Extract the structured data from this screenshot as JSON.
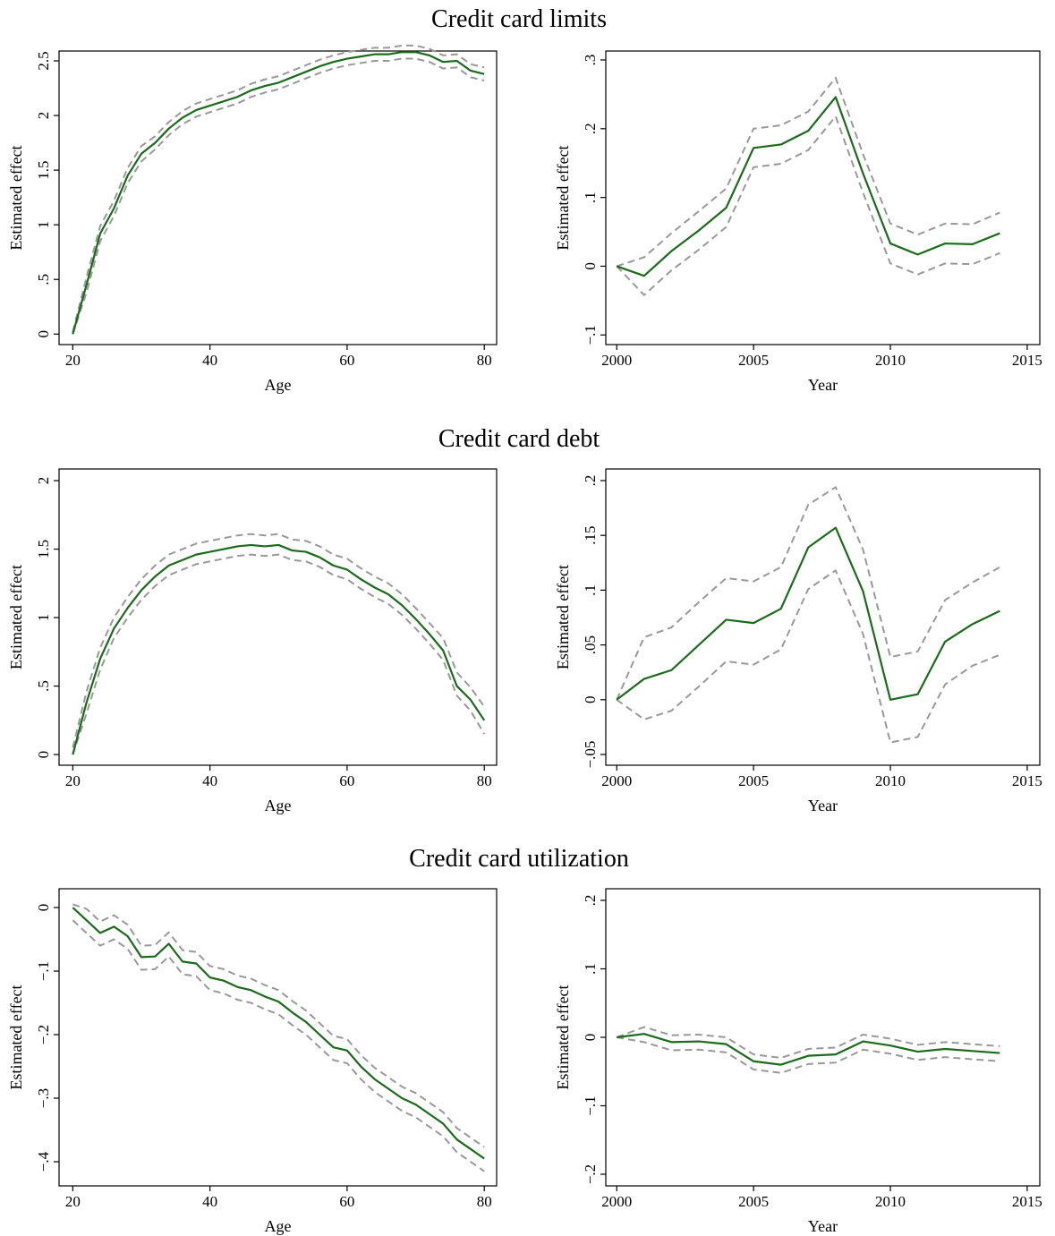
{
  "chart_data": [
    {
      "type": "line",
      "title": "Credit card limits",
      "xlabel": "Age",
      "ylabel": "Estimated effect",
      "x": [
        20,
        22,
        24,
        26,
        28,
        30,
        32,
        34,
        36,
        38,
        40,
        42,
        44,
        46,
        48,
        50,
        52,
        54,
        56,
        58,
        60,
        62,
        64,
        66,
        68,
        70,
        72,
        74,
        76,
        78,
        80
      ],
      "series": [
        {
          "color": "#999999",
          "dashed": true,
          "values": [
            0.02,
            0.52,
            0.99,
            1.22,
            1.52,
            1.72,
            1.81,
            1.94,
            2.04,
            2.11,
            2.15,
            2.19,
            2.23,
            2.29,
            2.33,
            2.36,
            2.41,
            2.46,
            2.51,
            2.55,
            2.58,
            2.6,
            2.62,
            2.62,
            2.64,
            2.64,
            2.61,
            2.55,
            2.56,
            2.47,
            2.44
          ]
        },
        {
          "color": "#999999",
          "dashed": true,
          "values": [
            0,
            0.38,
            0.85,
            1.08,
            1.38,
            1.58,
            1.69,
            1.82,
            1.92,
            1.99,
            2.03,
            2.07,
            2.11,
            2.17,
            2.21,
            2.24,
            2.29,
            2.34,
            2.39,
            2.43,
            2.46,
            2.48,
            2.5,
            2.5,
            2.52,
            2.52,
            2.49,
            2.43,
            2.44,
            2.35,
            2.32
          ]
        },
        {
          "color": "#1a6b1a",
          "dashed": false,
          "values": [
            0,
            0.45,
            0.92,
            1.15,
            1.45,
            1.65,
            1.75,
            1.88,
            1.98,
            2.05,
            2.09,
            2.13,
            2.17,
            2.23,
            2.27,
            2.3,
            2.35,
            2.4,
            2.45,
            2.49,
            2.52,
            2.54,
            2.56,
            2.56,
            2.58,
            2.58,
            2.55,
            2.49,
            2.5,
            2.41,
            2.38
          ]
        }
      ],
      "xlim": [
        18.0,
        81.8
      ],
      "ylim": [
        -0.096,
        2.59
      ],
      "xticks": [
        20,
        40,
        60,
        80
      ],
      "yticks": [
        0,
        {
          "value": 0.5,
          "label": ".5"
        },
        1,
        1.5,
        2,
        2.5
      ]
    },
    {
      "type": "line",
      "xlabel": "Year",
      "ylabel": "Estimated effect",
      "x": [
        2000,
        2001,
        2002,
        2003,
        2004,
        2005,
        2006,
        2007,
        2008,
        2009,
        2010,
        2011,
        2012,
        2013,
        2014
      ],
      "series": [
        {
          "color": "#999999",
          "dashed": true,
          "values": [
            0,
            0.013,
            0.048,
            0.08,
            0.113,
            0.2,
            0.205,
            0.225,
            0.274,
            0.163,
            0.062,
            0.046,
            0.062,
            0.061,
            0.078
          ]
        },
        {
          "color": "#999999",
          "dashed": true,
          "values": [
            0,
            -0.042,
            -0.006,
            0.024,
            0.057,
            0.144,
            0.149,
            0.169,
            0.218,
            0.107,
            0.004,
            -0.012,
            0.004,
            0.003,
            0.019
          ]
        },
        {
          "color": "#1a6b1a",
          "dashed": false,
          "values": [
            0,
            -0.014,
            0.022,
            0.052,
            0.085,
            0.172,
            0.177,
            0.197,
            0.246,
            0.135,
            0.033,
            0.017,
            0.033,
            0.032,
            0.048
          ]
        }
      ],
      "xlim": [
        1999.6,
        2015.46
      ],
      "ylim": [
        -0.114,
        0.313
      ],
      "xticks": [
        2000,
        2005,
        2010,
        2015
      ],
      "yticks": [
        {
          "value": -0.1,
          "label": "−.1"
        },
        0,
        {
          "value": 0.1,
          "label": ".1"
        },
        {
          "value": 0.2,
          "label": ".2"
        },
        {
          "value": 0.3,
          "label": ".3"
        }
      ]
    },
    {
      "type": "line",
      "title": "Credit card debt",
      "xlabel": "Age",
      "ylabel": "Estimated effect",
      "x": [
        20,
        22,
        24,
        26,
        28,
        30,
        32,
        34,
        36,
        38,
        40,
        42,
        44,
        46,
        48,
        50,
        52,
        54,
        56,
        58,
        60,
        62,
        64,
        66,
        68,
        70,
        72,
        74,
        76,
        78,
        80
      ],
      "series": [
        {
          "color": "#999999",
          "dashed": true,
          "values": [
            0.05,
            0.46,
            0.78,
            1.0,
            1.15,
            1.28,
            1.38,
            1.46,
            1.5,
            1.54,
            1.56,
            1.58,
            1.6,
            1.61,
            1.6,
            1.61,
            1.57,
            1.56,
            1.52,
            1.46,
            1.43,
            1.36,
            1.3,
            1.25,
            1.17,
            1.07,
            0.96,
            0.85,
            0.6,
            0.49,
            0.35
          ]
        },
        {
          "color": "#999999",
          "dashed": true,
          "values": [
            0,
            0.3,
            0.62,
            0.85,
            1.0,
            1.13,
            1.23,
            1.31,
            1.35,
            1.39,
            1.41,
            1.43,
            1.45,
            1.46,
            1.45,
            1.46,
            1.42,
            1.41,
            1.37,
            1.31,
            1.28,
            1.21,
            1.15,
            1.1,
            1.02,
            0.92,
            0.81,
            0.69,
            0.43,
            0.32,
            0.15
          ]
        },
        {
          "color": "#1a6b1a",
          "dashed": false,
          "values": [
            0,
            0.38,
            0.7,
            0.92,
            1.07,
            1.2,
            1.3,
            1.38,
            1.42,
            1.46,
            1.48,
            1.5,
            1.52,
            1.53,
            1.52,
            1.53,
            1.49,
            1.48,
            1.44,
            1.38,
            1.35,
            1.28,
            1.22,
            1.17,
            1.09,
            0.99,
            0.88,
            0.76,
            0.5,
            0.4,
            0.25
          ]
        }
      ],
      "xlim": [
        18.0,
        81.8
      ],
      "ylim": [
        -0.078,
        2.085
      ],
      "xticks": [
        20,
        40,
        60,
        80
      ],
      "yticks": [
        0,
        {
          "value": 0.5,
          "label": ".5"
        },
        1,
        1.5,
        2
      ]
    },
    {
      "type": "line",
      "xlabel": "Year",
      "ylabel": "Estimated effect",
      "x": [
        2000,
        2001,
        2002,
        2003,
        2004,
        2005,
        2006,
        2007,
        2008,
        2009,
        2010,
        2011,
        2012,
        2013,
        2014
      ],
      "series": [
        {
          "color": "#999999",
          "dashed": true,
          "values": [
            0,
            0.057,
            0.066,
            0.089,
            0.111,
            0.108,
            0.121,
            0.178,
            0.194,
            0.137,
            0.039,
            0.044,
            0.091,
            0.107,
            0.121
          ]
        },
        {
          "color": "#999999",
          "dashed": true,
          "values": [
            0,
            -0.018,
            -0.01,
            0.012,
            0.035,
            0.032,
            0.046,
            0.101,
            0.118,
            0.06,
            -0.039,
            -0.034,
            0.014,
            0.031,
            0.041
          ]
        },
        {
          "color": "#1a6b1a",
          "dashed": false,
          "values": [
            0,
            0.019,
            0.027,
            0.05,
            0.073,
            0.07,
            0.083,
            0.139,
            0.157,
            0.099,
            0,
            0.005,
            0.053,
            0.069,
            0.081
          ]
        }
      ],
      "xlim": [
        1999.6,
        2015.46
      ],
      "ylim": [
        -0.0598,
        0.2106
      ],
      "xticks": [
        2000,
        2005,
        2010,
        2015
      ],
      "yticks": [
        {
          "value": -0.05,
          "label": "−.05"
        },
        0,
        {
          "value": 0.05,
          "label": ".05"
        },
        {
          "value": 0.1,
          "label": ".1"
        },
        {
          "value": 0.15,
          "label": ".15"
        },
        {
          "value": 0.2,
          "label": ".2"
        }
      ]
    },
    {
      "type": "line",
      "title": "Credit card utilization",
      "xlabel": "Age",
      "ylabel": "Estimated effect",
      "x": [
        20,
        22,
        24,
        26,
        28,
        30,
        32,
        34,
        36,
        38,
        40,
        42,
        44,
        46,
        48,
        50,
        52,
        54,
        56,
        58,
        60,
        62,
        64,
        66,
        68,
        70,
        72,
        74,
        76,
        78,
        80
      ],
      "series": [
        {
          "color": "#999999",
          "dashed": true,
          "values": [
            0.005,
            -0.002,
            -0.022,
            -0.012,
            -0.027,
            -0.06,
            -0.059,
            -0.039,
            -0.067,
            -0.07,
            -0.092,
            -0.097,
            -0.107,
            -0.112,
            -0.122,
            -0.13,
            -0.147,
            -0.162,
            -0.182,
            -0.202,
            -0.207,
            -0.232,
            -0.252,
            -0.267,
            -0.282,
            -0.292,
            -0.307,
            -0.322,
            -0.347,
            -0.362,
            -0.377
          ]
        },
        {
          "color": "#999999",
          "dashed": true,
          "values": [
            -0.02,
            -0.04,
            -0.06,
            -0.05,
            -0.065,
            -0.098,
            -0.097,
            -0.077,
            -0.105,
            -0.108,
            -0.13,
            -0.135,
            -0.145,
            -0.15,
            -0.16,
            -0.168,
            -0.185,
            -0.2,
            -0.22,
            -0.24,
            -0.245,
            -0.27,
            -0.29,
            -0.305,
            -0.32,
            -0.33,
            -0.345,
            -0.36,
            -0.385,
            -0.4,
            -0.415
          ]
        },
        {
          "color": "#1a6b1a",
          "dashed": false,
          "values": [
            0,
            -0.02,
            -0.04,
            -0.03,
            -0.045,
            -0.078,
            -0.077,
            -0.057,
            -0.085,
            -0.088,
            -0.11,
            -0.115,
            -0.125,
            -0.13,
            -0.14,
            -0.148,
            -0.165,
            -0.18,
            -0.2,
            -0.22,
            -0.225,
            -0.25,
            -0.27,
            -0.285,
            -0.3,
            -0.31,
            -0.325,
            -0.34,
            -0.365,
            -0.38,
            -0.395
          ]
        }
      ],
      "xlim": [
        18.0,
        81.8
      ],
      "ylim": [
        -0.438,
        0.0296
      ],
      "xticks": [
        20,
        40,
        60,
        80
      ],
      "yticks": [
        {
          "value": -0.4,
          "label": "−.4"
        },
        {
          "value": -0.3,
          "label": "−.3"
        },
        {
          "value": -0.2,
          "label": "−.2"
        },
        {
          "value": -0.1,
          "label": "−.1"
        },
        0
      ]
    },
    {
      "type": "line",
      "xlabel": "Year",
      "ylabel": "Estimated effect",
      "x": [
        2000,
        2001,
        2002,
        2003,
        2004,
        2005,
        2006,
        2007,
        2008,
        2009,
        2010,
        2011,
        2012,
        2013,
        2014
      ],
      "series": [
        {
          "color": "#999999",
          "dashed": true,
          "values": [
            0,
            0.015,
            0.003,
            0.004,
            0,
            -0.025,
            -0.03,
            -0.017,
            -0.015,
            0.004,
            -0.002,
            -0.011,
            -0.007,
            -0.01,
            -0.013
          ]
        },
        {
          "color": "#999999",
          "dashed": true,
          "values": [
            0,
            -0.007,
            -0.019,
            -0.018,
            -0.022,
            -0.047,
            -0.052,
            -0.039,
            -0.037,
            -0.018,
            -0.024,
            -0.033,
            -0.029,
            -0.032,
            -0.035
          ]
        },
        {
          "color": "#1a6b1a",
          "dashed": false,
          "values": [
            0,
            0.005,
            -0.007,
            -0.006,
            -0.01,
            -0.035,
            -0.04,
            -0.027,
            -0.025,
            -0.006,
            -0.012,
            -0.021,
            -0.017,
            -0.02,
            -0.023
          ]
        }
      ],
      "xlim": [
        1999.6,
        2015.46
      ],
      "ylim": [
        -0.217,
        0.217
      ],
      "xticks": [
        2000,
        2005,
        2010,
        2015
      ],
      "yticks": [
        {
          "value": -0.2,
          "label": "−.2"
        },
        {
          "value": -0.1,
          "label": "−.1"
        },
        0,
        {
          "value": 0.1,
          "label": ".1"
        },
        {
          "value": 0.2,
          "label": ".2"
        }
      ]
    }
  ]
}
